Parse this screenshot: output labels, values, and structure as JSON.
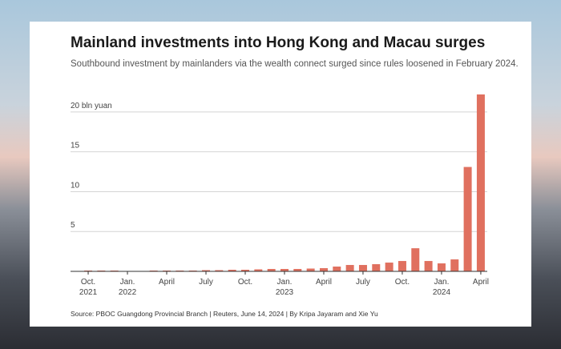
{
  "chart_data": {
    "type": "bar",
    "title": "Mainland investments into Hong Kong and Macau surges",
    "subtitle": "Southbound investment by mainlanders via the wealth connect surged since rules loosened in February 2024.",
    "source": "Source: PBOC Guangdong Provincial Branch | Reuters, June 14, 2024 | By Kripa Jayaram and Xie Yu",
    "categories": [
      null,
      "Oct.\n2021",
      null,
      null,
      "Jan.\n2022",
      null,
      null,
      "April",
      null,
      null,
      "July",
      null,
      null,
      "Oct.",
      null,
      null,
      "Jan.\n2023",
      null,
      null,
      "April",
      null,
      null,
      "July",
      null,
      null,
      "Oct.",
      null,
      null,
      "Jan.\n2024",
      null,
      null,
      "April"
    ],
    "values": [
      0.05,
      0.1,
      0.1,
      0.1,
      0.05,
      0.05,
      0.1,
      0.1,
      0.1,
      0.1,
      0.15,
      0.15,
      0.2,
      0.2,
      0.25,
      0.3,
      0.3,
      0.3,
      0.35,
      0.4,
      0.6,
      0.8,
      0.8,
      0.9,
      1.1,
      1.3,
      2.9,
      1.3,
      1.0,
      1.5,
      13.1,
      22.2
    ],
    "color": "#e0705f",
    "ylim": [
      0,
      22.5
    ],
    "yticks": [
      5,
      10,
      15,
      {
        "value": 20,
        "label": "20 bln yuan"
      }
    ],
    "grid": true
  }
}
